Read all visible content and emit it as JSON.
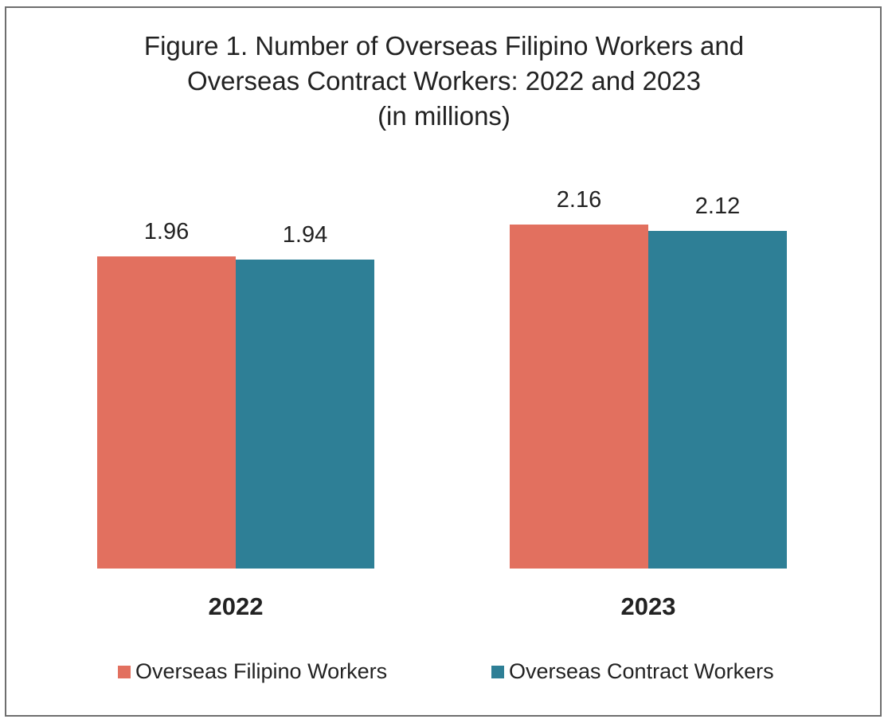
{
  "colors": {
    "ofw": "#e2705f",
    "ocw": "#2e7f96",
    "text": "#222222"
  },
  "chart_data": {
    "type": "bar",
    "title": "Figure 1. Number of Overseas Filipino Workers and Overseas Contract Workers: 2022 and 2023",
    "subtitle": "(in millions)",
    "categories": [
      "2022",
      "2023"
    ],
    "series": [
      {
        "name": "Overseas Filipino Workers",
        "values": [
          1.96,
          2.16
        ],
        "labels": [
          "1.96",
          "2.16"
        ]
      },
      {
        "name": "Overseas Contract Workers",
        "values": [
          1.94,
          2.12
        ],
        "labels": [
          "1.94",
          "2.12"
        ]
      }
    ],
    "legend": "bottom",
    "grid": false,
    "ylim": [
      0,
      2.2
    ]
  },
  "title_lines": [
    "Figure 1. Number of Overseas Filipino Workers and",
    "Overseas Contract Workers: 2022 and 2023",
    "(in millions)"
  ]
}
